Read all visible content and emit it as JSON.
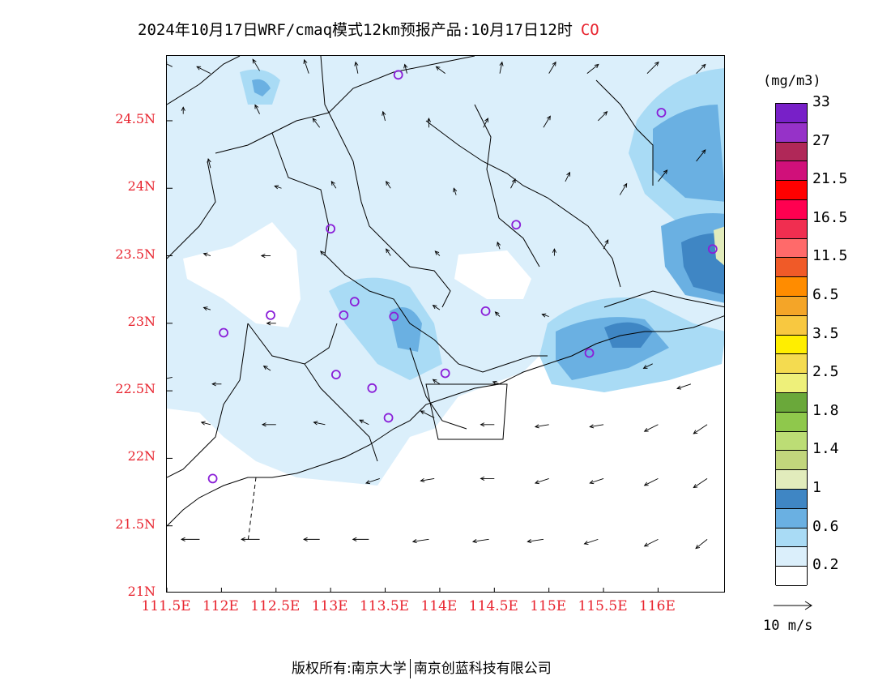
{
  "header": {
    "title": "2024年10月17日WRF/cmaq模式12km预报产品:10月17日12时",
    "pollutant": "CO"
  },
  "axes": {
    "lat_labels": [
      "24.5N",
      "24N",
      "23.5N",
      "23N",
      "22.5N",
      "22N",
      "21.5N",
      "21N"
    ],
    "lat_values": [
      24.5,
      24.0,
      23.5,
      23.0,
      22.5,
      22.0,
      21.5,
      21.0
    ],
    "lon_labels": [
      "111.5E",
      "112E",
      "112.5E",
      "113E",
      "113.5E",
      "114E",
      "114.5E",
      "115E",
      "115.5E",
      "116E"
    ],
    "lon_values": [
      111.5,
      112.0,
      112.5,
      113.0,
      113.5,
      114.0,
      114.5,
      115.0,
      115.5,
      116.0
    ],
    "lon_range": [
      111.5,
      116.62
    ],
    "lat_range": [
      21.0,
      24.98
    ]
  },
  "colorbar": {
    "unit": "(mg/m3)",
    "colors": [
      "#ffffff",
      "#dbeffb",
      "#a9dbf5",
      "#6ab0e2",
      "#3f86c4",
      "#e2ecbc",
      "#c2d67c",
      "#bcdd75",
      "#8fc84c",
      "#6aa83a",
      "#eef07a",
      "#f4db50",
      "#ffee00",
      "#f8c840",
      "#f4a528",
      "#ff8c00",
      "#f05a28",
      "#ff6a6a",
      "#f02e50",
      "#ff0050",
      "#ff0000",
      "#d0107a",
      "#b02858",
      "#9632c8",
      "#7820c8"
    ],
    "labels": [
      "0.2",
      "0.6",
      "1",
      "1.4",
      "1.8",
      "2.5",
      "3.5",
      "6.5",
      "11.5",
      "16.5",
      "21.5",
      "27",
      "33"
    ],
    "label_cell_index": [
      1,
      3,
      5,
      7,
      9,
      11,
      13,
      15,
      17,
      19,
      21,
      23,
      25
    ]
  },
  "wind_key": {
    "label": "10 m/s"
  },
  "footer": {
    "left": "版权所有:南京大学",
    "right": "南京创蓝科技有限公司"
  },
  "stations": [
    {
      "lon": 113.62,
      "lat": 24.84
    },
    {
      "lon": 116.03,
      "lat": 24.56
    },
    {
      "lon": 113.0,
      "lat": 23.7
    },
    {
      "lon": 114.7,
      "lat": 23.73
    },
    {
      "lon": 116.5,
      "lat": 23.55
    },
    {
      "lon": 113.22,
      "lat": 23.16
    },
    {
      "lon": 113.12,
      "lat": 23.06
    },
    {
      "lon": 113.58,
      "lat": 23.05
    },
    {
      "lon": 114.42,
      "lat": 23.09
    },
    {
      "lon": 112.45,
      "lat": 23.06
    },
    {
      "lon": 112.02,
      "lat": 22.93
    },
    {
      "lon": 115.37,
      "lat": 22.78
    },
    {
      "lon": 113.05,
      "lat": 22.62
    },
    {
      "lon": 113.38,
      "lat": 22.52
    },
    {
      "lon": 114.05,
      "lat": 22.63
    },
    {
      "lon": 113.53,
      "lat": 22.3
    },
    {
      "lon": 111.92,
      "lat": 21.85
    }
  ],
  "wind_vectors": [
    {
      "lon": 111.55,
      "lat": 24.9,
      "u": -0.4,
      "v": 0.2
    },
    {
      "lon": 111.9,
      "lat": 24.85,
      "u": -0.6,
      "v": 0.3
    },
    {
      "lon": 112.35,
      "lat": 24.87,
      "u": -0.3,
      "v": 0.5
    },
    {
      "lon": 112.8,
      "lat": 24.85,
      "u": -0.2,
      "v": 0.6
    },
    {
      "lon": 113.25,
      "lat": 24.85,
      "u": -0.1,
      "v": 0.5
    },
    {
      "lon": 113.7,
      "lat": 24.85,
      "u": -0.1,
      "v": 0.4
    },
    {
      "lon": 114.05,
      "lat": 24.85,
      "u": -0.4,
      "v": 0.3
    },
    {
      "lon": 114.55,
      "lat": 24.85,
      "u": 0.1,
      "v": 0.5
    },
    {
      "lon": 115.0,
      "lat": 24.85,
      "u": 0.3,
      "v": 0.5
    },
    {
      "lon": 115.35,
      "lat": 24.85,
      "u": 0.5,
      "v": 0.4
    },
    {
      "lon": 115.9,
      "lat": 24.85,
      "u": 0.5,
      "v": 0.5
    },
    {
      "lon": 116.35,
      "lat": 24.85,
      "u": 0.4,
      "v": 0.4
    },
    {
      "lon": 111.65,
      "lat": 24.55,
      "u": 0.0,
      "v": 0.3
    },
    {
      "lon": 112.35,
      "lat": 24.55,
      "u": -0.2,
      "v": 0.4
    },
    {
      "lon": 112.9,
      "lat": 24.45,
      "u": -0.3,
      "v": 0.4
    },
    {
      "lon": 113.5,
      "lat": 24.5,
      "u": -0.1,
      "v": 0.4
    },
    {
      "lon": 113.9,
      "lat": 24.45,
      "u": 0.0,
      "v": 0.4
    },
    {
      "lon": 114.4,
      "lat": 24.45,
      "u": 0.2,
      "v": 0.4
    },
    {
      "lon": 114.95,
      "lat": 24.45,
      "u": 0.3,
      "v": 0.5
    },
    {
      "lon": 115.45,
      "lat": 24.5,
      "u": 0.4,
      "v": 0.4
    },
    {
      "lon": 116.35,
      "lat": 24.2,
      "u": 0.4,
      "v": 0.5
    },
    {
      "lon": 111.9,
      "lat": 24.15,
      "u": -0.1,
      "v": 0.4
    },
    {
      "lon": 112.55,
      "lat": 24.0,
      "u": -0.3,
      "v": 0.1
    },
    {
      "lon": 113.05,
      "lat": 24.0,
      "u": -0.2,
      "v": 0.3
    },
    {
      "lon": 113.55,
      "lat": 24.0,
      "u": -0.2,
      "v": 0.3
    },
    {
      "lon": 114.15,
      "lat": 23.95,
      "u": -0.1,
      "v": 0.3
    },
    {
      "lon": 114.65,
      "lat": 24.0,
      "u": 0.2,
      "v": 0.4
    },
    {
      "lon": 115.15,
      "lat": 24.05,
      "u": 0.2,
      "v": 0.4
    },
    {
      "lon": 115.65,
      "lat": 23.95,
      "u": 0.3,
      "v": 0.5
    },
    {
      "lon": 116.0,
      "lat": 24.05,
      "u": 0.4,
      "v": 0.5
    },
    {
      "lon": 111.9,
      "lat": 23.5,
      "u": -0.3,
      "v": 0.1
    },
    {
      "lon": 112.45,
      "lat": 23.5,
      "u": -0.4,
      "v": 0.0
    },
    {
      "lon": 112.95,
      "lat": 23.5,
      "u": -0.2,
      "v": 0.2
    },
    {
      "lon": 113.55,
      "lat": 23.5,
      "u": -0.2,
      "v": 0.3
    },
    {
      "lon": 114.0,
      "lat": 23.5,
      "u": -0.2,
      "v": 0.2
    },
    {
      "lon": 114.55,
      "lat": 23.55,
      "u": -0.1,
      "v": 0.3
    },
    {
      "lon": 115.05,
      "lat": 23.5,
      "u": 0.0,
      "v": 0.3
    },
    {
      "lon": 115.5,
      "lat": 23.55,
      "u": 0.2,
      "v": 0.4
    },
    {
      "lon": 111.9,
      "lat": 23.1,
      "u": -0.3,
      "v": 0.1
    },
    {
      "lon": 112.5,
      "lat": 23.0,
      "u": -0.4,
      "v": 0.0
    },
    {
      "lon": 114.0,
      "lat": 23.1,
      "u": -0.3,
      "v": 0.2
    },
    {
      "lon": 114.55,
      "lat": 23.05,
      "u": -0.2,
      "v": 0.2
    },
    {
      "lon": 115.0,
      "lat": 23.05,
      "u": -0.3,
      "v": 0.1
    },
    {
      "lon": 115.95,
      "lat": 22.7,
      "u": -0.4,
      "v": -0.2
    },
    {
      "lon": 116.3,
      "lat": 22.55,
      "u": -0.6,
      "v": -0.2
    },
    {
      "lon": 111.55,
      "lat": 22.6,
      "u": -0.5,
      "v": -0.1
    },
    {
      "lon": 112.0,
      "lat": 22.55,
      "u": -0.4,
      "v": 0.0
    },
    {
      "lon": 112.45,
      "lat": 22.65,
      "u": -0.3,
      "v": 0.2
    },
    {
      "lon": 114.0,
      "lat": 22.55,
      "u": -0.3,
      "v": 0.2
    },
    {
      "lon": 114.55,
      "lat": 22.55,
      "u": -0.3,
      "v": 0.1
    },
    {
      "lon": 111.9,
      "lat": 22.25,
      "u": -0.4,
      "v": 0.1
    },
    {
      "lon": 112.5,
      "lat": 22.25,
      "u": -0.6,
      "v": 0.0
    },
    {
      "lon": 112.95,
      "lat": 22.25,
      "u": -0.5,
      "v": 0.1
    },
    {
      "lon": 113.35,
      "lat": 22.25,
      "u": -0.4,
      "v": 0.2
    },
    {
      "lon": 113.95,
      "lat": 22.3,
      "u": -0.6,
      "v": 0.3
    },
    {
      "lon": 114.5,
      "lat": 22.25,
      "u": -0.6,
      "v": 0.0
    },
    {
      "lon": 115.0,
      "lat": 22.25,
      "u": -0.6,
      "v": -0.1
    },
    {
      "lon": 115.5,
      "lat": 22.25,
      "u": -0.6,
      "v": -0.1
    },
    {
      "lon": 116.0,
      "lat": 22.25,
      "u": -0.6,
      "v": -0.3
    },
    {
      "lon": 116.45,
      "lat": 22.25,
      "u": -0.6,
      "v": -0.4
    },
    {
      "lon": 113.45,
      "lat": 21.85,
      "u": -0.6,
      "v": -0.2
    },
    {
      "lon": 113.95,
      "lat": 21.85,
      "u": -0.6,
      "v": -0.1
    },
    {
      "lon": 114.5,
      "lat": 21.85,
      "u": -0.6,
      "v": 0.0
    },
    {
      "lon": 115.0,
      "lat": 21.85,
      "u": -0.6,
      "v": -0.2
    },
    {
      "lon": 115.5,
      "lat": 21.85,
      "u": -0.6,
      "v": -0.2
    },
    {
      "lon": 116.0,
      "lat": 21.85,
      "u": -0.6,
      "v": -0.3
    },
    {
      "lon": 116.45,
      "lat": 21.85,
      "u": -0.6,
      "v": -0.4
    },
    {
      "lon": 111.8,
      "lat": 21.4,
      "u": -0.8,
      "v": 0.0
    },
    {
      "lon": 112.35,
      "lat": 21.4,
      "u": -0.8,
      "v": 0.0
    },
    {
      "lon": 112.9,
      "lat": 21.4,
      "u": -0.7,
      "v": 0.0
    },
    {
      "lon": 113.35,
      "lat": 21.4,
      "u": -0.7,
      "v": 0.0
    },
    {
      "lon": 113.9,
      "lat": 21.4,
      "u": -0.7,
      "v": -0.1
    },
    {
      "lon": 114.45,
      "lat": 21.4,
      "u": -0.7,
      "v": -0.1
    },
    {
      "lon": 114.95,
      "lat": 21.4,
      "u": -0.7,
      "v": -0.1
    },
    {
      "lon": 115.45,
      "lat": 21.4,
      "u": -0.6,
      "v": -0.2
    },
    {
      "lon": 116.0,
      "lat": 21.4,
      "u": -0.6,
      "v": -0.3
    },
    {
      "lon": 116.45,
      "lat": 21.4,
      "u": -0.5,
      "v": -0.4
    }
  ]
}
